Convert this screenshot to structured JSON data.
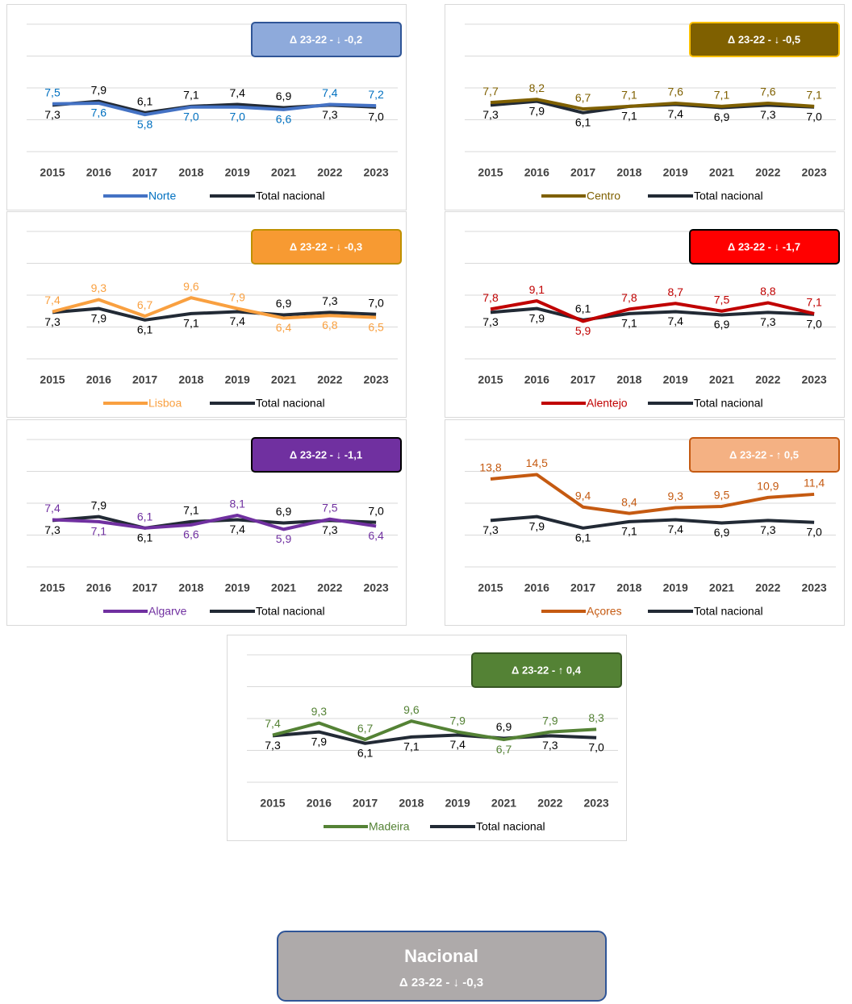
{
  "chart_data": [
    {
      "type": "line",
      "categories": [
        "2015",
        "2016",
        "2017",
        "2018",
        "2019",
        "2021",
        "2022",
        "2023"
      ],
      "ylim": [
        0,
        20
      ],
      "yticks": [
        0,
        5,
        10,
        15,
        20
      ],
      "grid": true,
      "annotation": "Δ 23-22 - ↓ -0,2",
      "annotation_color": "#8eaadb",
      "annotation_border": "#2f5597",
      "series": [
        {
          "name": "Norte",
          "color": "#4472c4",
          "label_color": "#0070c0",
          "values": [
            7.5,
            7.6,
            5.8,
            7.0,
            7.0,
            6.6,
            7.4,
            7.2
          ],
          "value_labels": [
            "7,5",
            "7,6",
            "5,8",
            "7,0",
            "7,0",
            "6,6",
            "7,4",
            "7,2"
          ]
        },
        {
          "name": "Total nacional",
          "color": "#222a35",
          "label_color": "#000000",
          "values": [
            7.3,
            7.9,
            6.1,
            7.1,
            7.4,
            6.9,
            7.3,
            7.0
          ],
          "value_labels": [
            "7,3",
            "7,9",
            "6,1",
            "7,1",
            "7,4",
            "6,9",
            "7,3",
            "7,0"
          ]
        }
      ]
    },
    {
      "type": "line",
      "categories": [
        "2015",
        "2016",
        "2017",
        "2018",
        "2019",
        "2021",
        "2022",
        "2023"
      ],
      "ylim": [
        0,
        20
      ],
      "yticks": [
        0,
        5,
        10,
        15,
        20
      ],
      "grid": true,
      "annotation": "Δ 23-22 - ↓ -0,5",
      "annotation_color": "#7f6000",
      "annotation_border": "#ffc000",
      "series": [
        {
          "name": "Centro",
          "color": "#7f6000",
          "label_color": "#7f6000",
          "values": [
            7.7,
            8.2,
            6.7,
            7.1,
            7.6,
            7.1,
            7.6,
            7.1
          ],
          "value_labels": [
            "7,7",
            "8,2",
            "6,7",
            "7,1",
            "7,6",
            "7,1",
            "7,6",
            "7,1"
          ]
        },
        {
          "name": "Total nacional",
          "color": "#222a35",
          "label_color": "#000000",
          "values": [
            7.3,
            7.9,
            6.1,
            7.1,
            7.4,
            6.9,
            7.3,
            7.0
          ],
          "value_labels": [
            "7,3",
            "7,9",
            "6,1",
            "7,1",
            "7,4",
            "6,9",
            "7,3",
            "7,0"
          ]
        }
      ]
    },
    {
      "type": "line",
      "categories": [
        "2015",
        "2016",
        "2017",
        "2018",
        "2019",
        "2021",
        "2022",
        "2023"
      ],
      "ylim": [
        0,
        20
      ],
      "yticks": [
        0,
        5,
        10,
        15,
        20
      ],
      "grid": true,
      "annotation": "Δ 23-22 - ↓ -0,3",
      "annotation_color": "#f79a32",
      "annotation_border": "#bf9000",
      "series": [
        {
          "name": "Lisboa",
          "color": "#f9a040",
          "label_color": "#f9a040",
          "values": [
            7.4,
            9.3,
            6.7,
            9.6,
            7.9,
            6.4,
            6.8,
            6.5
          ],
          "value_labels": [
            "7,4",
            "9,3",
            "6,7",
            "9,6",
            "7,9",
            "6,4",
            "6,8",
            "6,5"
          ]
        },
        {
          "name": "Total nacional",
          "color": "#222a35",
          "label_color": "#000000",
          "values": [
            7.3,
            7.9,
            6.1,
            7.1,
            7.4,
            6.9,
            7.3,
            7.0
          ],
          "value_labels": [
            "7,3",
            "7,9",
            "6,1",
            "7,1",
            "7,4",
            "6,9",
            "7,3",
            "7,0"
          ]
        }
      ]
    },
    {
      "type": "line",
      "categories": [
        "2015",
        "2016",
        "2017",
        "2018",
        "2019",
        "2021",
        "2022",
        "2023"
      ],
      "ylim": [
        0,
        20
      ],
      "yticks": [
        0,
        5,
        10,
        15,
        20
      ],
      "grid": true,
      "annotation": "Δ 23-22 - ↓ -1,7",
      "annotation_color": "#ff0000",
      "annotation_border": "#000000",
      "series": [
        {
          "name": "Alentejo",
          "color": "#c00000",
          "label_color": "#c00000",
          "values": [
            7.8,
            9.1,
            5.9,
            7.8,
            8.7,
            7.5,
            8.8,
            7.1
          ],
          "value_labels": [
            "7,8",
            "9,1",
            "5,9",
            "7,8",
            "8,7",
            "7,5",
            "8,8",
            "7,1"
          ]
        },
        {
          "name": "Total nacional",
          "color": "#222a35",
          "label_color": "#000000",
          "values": [
            7.3,
            7.9,
            6.1,
            7.1,
            7.4,
            6.9,
            7.3,
            7.0
          ],
          "value_labels": [
            "7,3",
            "7,9",
            "6,1",
            "7,1",
            "7,4",
            "6,9",
            "7,3",
            "7,0"
          ]
        }
      ]
    },
    {
      "type": "line",
      "categories": [
        "2015",
        "2016",
        "2017",
        "2018",
        "2019",
        "2021",
        "2022",
        "2023"
      ],
      "ylim": [
        0,
        20
      ],
      "yticks": [
        0,
        5,
        10,
        15,
        20
      ],
      "grid": true,
      "annotation": "Δ 23-22 - ↓ -1,1",
      "annotation_color": "#7030a0",
      "annotation_border": "#000000",
      "series": [
        {
          "name": "Algarve",
          "color": "#7030a0",
          "label_color": "#7030a0",
          "values": [
            7.4,
            7.1,
            6.1,
            6.6,
            8.1,
            5.9,
            7.5,
            6.4
          ],
          "value_labels": [
            "7,4",
            "7,1",
            "6,1",
            "6,6",
            "8,1",
            "5,9",
            "7,5",
            "6,4"
          ]
        },
        {
          "name": "Total nacional",
          "color": "#222a35",
          "label_color": "#000000",
          "values": [
            7.3,
            7.9,
            6.1,
            7.1,
            7.4,
            6.9,
            7.3,
            7.0
          ],
          "value_labels": [
            "7,3",
            "7,9",
            "6,1",
            "7,1",
            "7,4",
            "6,9",
            "7,3",
            "7,0"
          ]
        }
      ]
    },
    {
      "type": "line",
      "categories": [
        "2015",
        "2016",
        "2017",
        "2018",
        "2019",
        "2021",
        "2022",
        "2023"
      ],
      "ylim": [
        0,
        20
      ],
      "yticks": [
        0,
        5,
        10,
        15,
        20
      ],
      "grid": true,
      "annotation": "Δ 23-22 - ↑ 0,5",
      "annotation_color": "#f4b183",
      "annotation_border": "#c55a11",
      "series": [
        {
          "name": "Açores",
          "color": "#c55a11",
          "label_color": "#c55a11",
          "values": [
            13.8,
            14.5,
            9.4,
            8.4,
            9.3,
            9.5,
            10.9,
            11.4
          ],
          "value_labels": [
            "13,8",
            "14,5",
            "9,4",
            "8,4",
            "9,3",
            "9,5",
            "10,9",
            "11,4"
          ]
        },
        {
          "name": "Total nacional",
          "color": "#222a35",
          "label_color": "#000000",
          "values": [
            7.3,
            7.9,
            6.1,
            7.1,
            7.4,
            6.9,
            7.3,
            7.0
          ],
          "value_labels": [
            "7,3",
            "7,9",
            "6,1",
            "7,1",
            "7,4",
            "6,9",
            "7,3",
            "7,0"
          ]
        }
      ]
    },
    {
      "type": "line",
      "categories": [
        "2015",
        "2016",
        "2017",
        "2018",
        "2019",
        "2021",
        "2022",
        "2023"
      ],
      "ylim": [
        0,
        20
      ],
      "yticks": [
        0,
        5,
        10,
        15,
        20
      ],
      "grid": true,
      "annotation": "Δ 23-22 - ↑ 0,4",
      "annotation_color": "#548235",
      "annotation_border": "#375623",
      "series": [
        {
          "name": "Madeira",
          "color": "#548235",
          "label_color": "#548235",
          "values": [
            7.4,
            9.3,
            6.7,
            9.6,
            7.9,
            6.7,
            7.9,
            8.3
          ],
          "value_labels": [
            "7,4",
            "9,3",
            "6,7",
            "9,6",
            "7,9",
            "6,7",
            "7,9",
            "8,3"
          ]
        },
        {
          "name": "Total nacional",
          "color": "#222a35",
          "label_color": "#000000",
          "values": [
            7.3,
            7.9,
            6.1,
            7.1,
            7.4,
            6.9,
            7.3,
            7.0
          ],
          "value_labels": [
            "7,3",
            "7,9",
            "6,1",
            "7,1",
            "7,4",
            "6,9",
            "7,3",
            "7,0"
          ]
        }
      ]
    }
  ],
  "summary": {
    "title": "Nacional",
    "subtitle": "Δ 23-22 - ↓ -0,3"
  }
}
